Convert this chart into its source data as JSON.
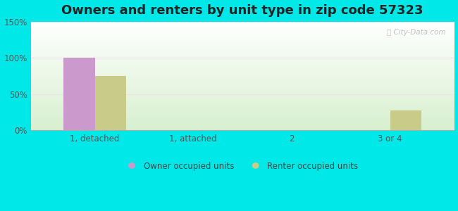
{
  "title": "Owners and renters by unit type in zip code 57323",
  "categories": [
    "1, detached",
    "1, attached",
    "2",
    "3 or 4"
  ],
  "owner_values": [
    100,
    0,
    0,
    0
  ],
  "renter_values": [
    75,
    0,
    0,
    27
  ],
  "owner_color": "#cc99cc",
  "renter_color": "#c8cc88",
  "ylim": [
    0,
    150
  ],
  "yticks": [
    0,
    50,
    100,
    150
  ],
  "ytick_labels": [
    "0%",
    "50%",
    "100%",
    "150%"
  ],
  "owner_label": "Owner occupied units",
  "renter_label": "Renter occupied units",
  "bg_color": "#00e8e8",
  "title_fontsize": 13,
  "bar_width": 0.32,
  "watermark": "City-Data.com",
  "grid_color": "#e8f5e8",
  "tick_color": "#555555"
}
